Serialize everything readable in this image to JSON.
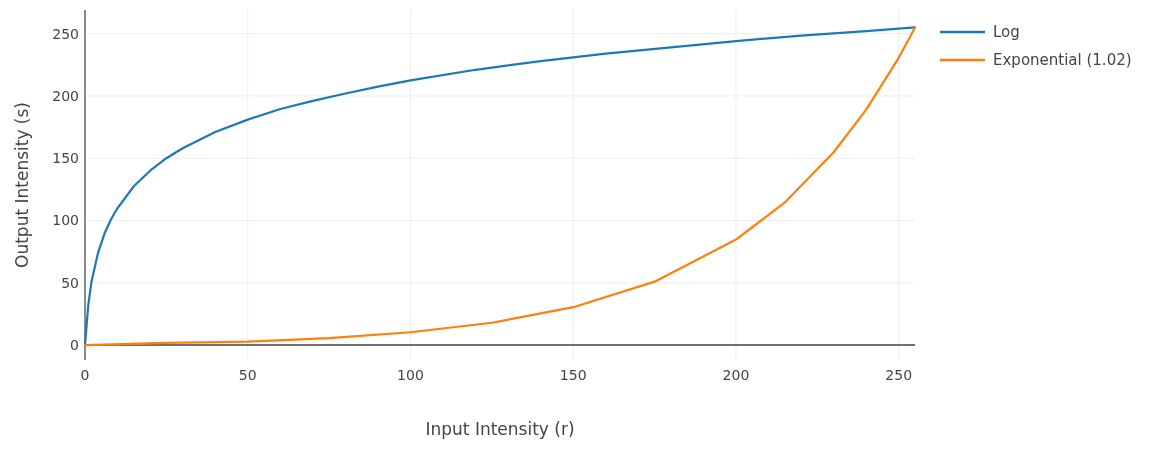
{
  "chart_data": {
    "type": "line",
    "xlabel": "Input Intensity (r)",
    "ylabel": "Output Intensity (s)",
    "xlim": [
      0,
      255
    ],
    "ylim": [
      -12,
      269
    ],
    "xticks": [
      0,
      50,
      100,
      150,
      200,
      250
    ],
    "yticks": [
      0,
      50,
      100,
      150,
      200,
      250
    ],
    "grid": true,
    "legend": "top right",
    "line_style": "solid",
    "marker": "none",
    "series": [
      {
        "name": "Log",
        "color": "#1f77b4",
        "x": [
          0,
          1,
          2,
          4,
          6,
          8,
          10,
          15,
          20,
          25,
          30,
          40,
          50,
          60,
          70,
          80,
          90,
          100,
          120,
          140,
          160,
          180,
          200,
          220,
          240,
          255
        ],
        "values": [
          0,
          32,
          51,
          74,
          89.5,
          101,
          110,
          127.5,
          140,
          150,
          158,
          171,
          181,
          189.5,
          196,
          202,
          207.5,
          212.5,
          221,
          228,
          234,
          239,
          244,
          248.5,
          252,
          255
        ]
      },
      {
        "name": "Exponential (1.02)",
        "color": "#ff7f0e",
        "x": [
          0,
          25,
          50,
          75,
          100,
          125,
          150,
          175,
          200,
          215,
          230,
          240,
          250,
          255
        ],
        "values": [
          0,
          1.7,
          2.8,
          5.6,
          10.3,
          17.9,
          30.4,
          50.9,
          84.7,
          114.5,
          154.8,
          189,
          230.6,
          255
        ]
      }
    ]
  }
}
